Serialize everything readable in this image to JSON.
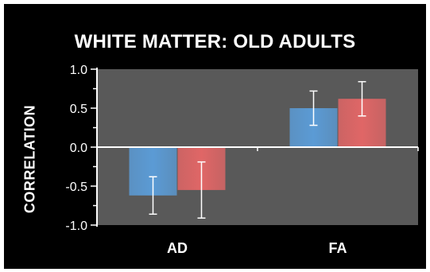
{
  "chart_data": {
    "type": "bar",
    "title": "WHITE MATTER: OLD ADULTS",
    "ylabel": "CORRELATION",
    "xlabel": "",
    "ylim": [
      -1.0,
      1.0
    ],
    "yticks": [
      "1.0",
      "0.5",
      "0.0",
      "-0.5",
      "-1.0"
    ],
    "yticks_values": [
      1.0,
      0.5,
      0.0,
      -0.5,
      -1.0
    ],
    "categories": [
      "AD",
      "FA"
    ],
    "series": [
      {
        "values": [
          -0.62,
          0.5
        ],
        "errors": [
          0.24,
          0.22
        ],
        "color": "#5b9bd5"
      },
      {
        "values": [
          -0.55,
          0.62
        ],
        "errors": [
          0.36,
          0.22
        ],
        "color": "#e06666"
      }
    ],
    "background": "#595959",
    "grid": false,
    "legend": "none"
  }
}
